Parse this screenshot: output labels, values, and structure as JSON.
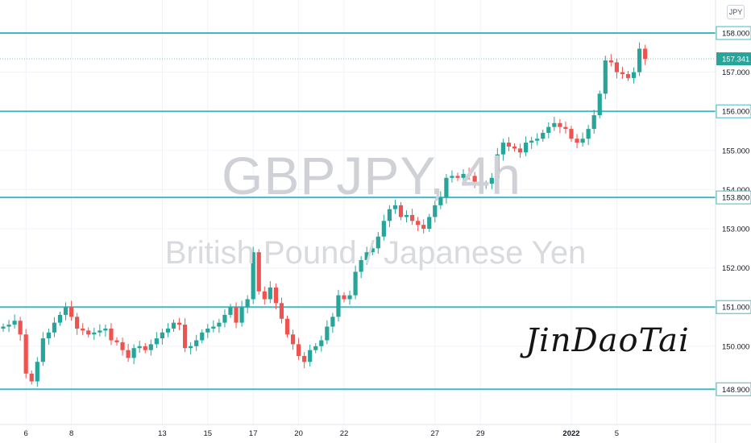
{
  "chart_data": {
    "type": "candlestick",
    "title": "GBPJPY, 4h",
    "subtitle": "British Pound / Japanese Yen",
    "currency": "JPY",
    "ylim": [
      148.6,
      159.0
    ],
    "y_ticks": [
      "150.000",
      "151.000",
      "152.000",
      "153.000",
      "154.000",
      "155.000",
      "156.000",
      "157.000",
      "158.000"
    ],
    "x_ticks": [
      {
        "label": "6",
        "i": 4
      },
      {
        "label": "8",
        "i": 12
      },
      {
        "label": "13",
        "i": 28
      },
      {
        "label": "15",
        "i": 36
      },
      {
        "label": "17",
        "i": 44
      },
      {
        "label": "20",
        "i": 52
      },
      {
        "label": "22",
        "i": 60
      },
      {
        "label": "27",
        "i": 76
      },
      {
        "label": "29",
        "i": 84
      },
      {
        "label": "2022",
        "i": 100
      },
      {
        "label": "5",
        "i": 108
      }
    ],
    "horizontal_levels": [
      {
        "value": 158.0,
        "label": "158.000"
      },
      {
        "value": 156.0,
        "label": "156.000"
      },
      {
        "value": 153.8,
        "label": "153.800"
      },
      {
        "value": 151.0,
        "label": "151.000"
      },
      {
        "value": 148.9,
        "label": "148.900"
      }
    ],
    "last_price": {
      "value": 157.341,
      "label": "157.341"
    },
    "closes": [
      150.5,
      150.55,
      150.65,
      150.3,
      149.3,
      149.1,
      149.6,
      150.2,
      150.35,
      150.6,
      150.8,
      151.0,
      150.75,
      150.45,
      150.4,
      150.3,
      150.35,
      150.4,
      150.45,
      150.15,
      150.1,
      149.9,
      149.7,
      149.95,
      150.0,
      149.9,
      150.05,
      150.2,
      150.35,
      150.45,
      150.6,
      150.55,
      149.95,
      150.0,
      150.15,
      150.35,
      150.45,
      150.5,
      150.6,
      150.8,
      151.0,
      150.6,
      151.0,
      151.2,
      152.4,
      151.4,
      151.2,
      151.5,
      151.1,
      150.7,
      150.3,
      150.05,
      149.75,
      149.6,
      149.9,
      150.0,
      150.15,
      150.5,
      150.75,
      151.3,
      151.2,
      151.3,
      151.9,
      152.2,
      152.4,
      152.5,
      152.8,
      153.2,
      153.5,
      153.6,
      153.3,
      153.35,
      153.2,
      153.1,
      153.0,
      153.3,
      153.6,
      153.8,
      154.3,
      154.35,
      154.3,
      154.4,
      154.35,
      154.2,
      154.1,
      154.15,
      154.3,
      154.9,
      155.2,
      155.1,
      155.05,
      154.95,
      155.2,
      155.25,
      155.3,
      155.45,
      155.6,
      155.7,
      155.6,
      155.55,
      155.3,
      155.2,
      155.3,
      155.55,
      155.9,
      156.45,
      157.3,
      157.25,
      157.0,
      156.95,
      156.85,
      157.0,
      157.6,
      157.341
    ],
    "opens": [
      150.45,
      150.5,
      150.55,
      150.65,
      150.3,
      149.3,
      149.1,
      149.6,
      150.2,
      150.35,
      150.6,
      150.8,
      151.0,
      150.75,
      150.45,
      150.4,
      150.3,
      150.35,
      150.4,
      150.45,
      150.15,
      150.1,
      149.9,
      149.7,
      149.95,
      150.0,
      149.9,
      150.05,
      150.2,
      150.35,
      150.45,
      150.6,
      150.55,
      149.95,
      150.0,
      150.15,
      150.35,
      150.45,
      150.5,
      150.6,
      150.8,
      151.0,
      150.6,
      151.0,
      151.2,
      152.4,
      151.4,
      151.2,
      151.5,
      151.1,
      150.7,
      150.3,
      150.05,
      149.75,
      149.6,
      149.9,
      150.0,
      150.15,
      150.5,
      150.75,
      151.3,
      151.2,
      151.3,
      151.9,
      152.2,
      152.4,
      152.5,
      152.8,
      153.2,
      153.5,
      153.6,
      153.3,
      153.35,
      153.2,
      153.1,
      153.0,
      153.3,
      153.6,
      153.8,
      154.3,
      154.35,
      154.3,
      154.4,
      154.35,
      154.2,
      154.1,
      154.15,
      154.3,
      154.9,
      155.2,
      155.1,
      155.05,
      154.95,
      155.2,
      155.25,
      155.3,
      155.45,
      155.6,
      155.7,
      155.6,
      155.55,
      155.3,
      155.2,
      155.3,
      155.55,
      155.9,
      156.45,
      157.3,
      157.25,
      157.0,
      156.95,
      156.85,
      157.0,
      157.6
    ],
    "colors": {
      "up": "#26a69a",
      "down": "#ef5350",
      "level": "#45b8c4",
      "axis_text": "#131722"
    }
  }
}
